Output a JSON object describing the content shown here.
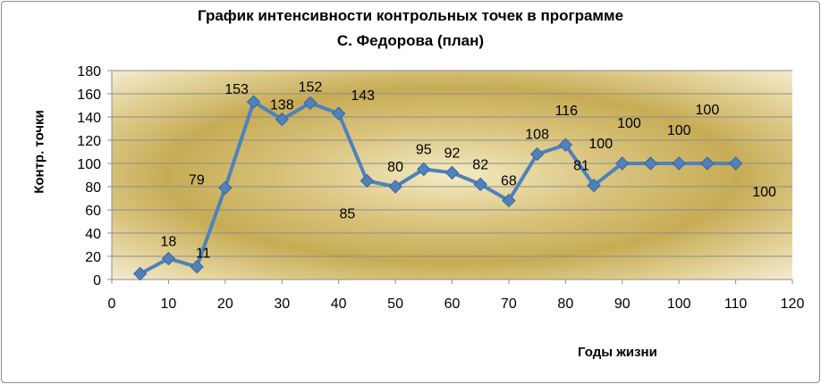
{
  "chart_data": {
    "type": "scatter",
    "title_line1": "График интенсивности контрольных точек   в программе",
    "title_line2": "С. Федорова (план)",
    "ylabel": "Контр. точки",
    "xlabel": "Годы жизни",
    "xlim": [
      0,
      120
    ],
    "ylim": [
      0,
      180
    ],
    "x_ticks": [
      0,
      10,
      20,
      30,
      40,
      50,
      60,
      70,
      80,
      90,
      100,
      110,
      120
    ],
    "y_ticks": [
      0,
      20,
      40,
      60,
      80,
      100,
      120,
      140,
      160,
      180
    ],
    "grid": "horizontal",
    "series": [
      {
        "color": "#4f81bd",
        "marker": "diamond",
        "x": [
          5,
          10,
          15,
          20,
          25,
          30,
          35,
          40,
          45,
          50,
          55,
          60,
          65,
          70,
          75,
          80,
          85,
          90,
          95,
          100,
          105,
          110
        ],
        "y": [
          5,
          18,
          11,
          79,
          153,
          138,
          152,
          143,
          85,
          80,
          95,
          92,
          82,
          68,
          108,
          116,
          81,
          100,
          100,
          100,
          100,
          100
        ]
      }
    ],
    "data_labels": [
      "",
      "18",
      "11",
      "79",
      "153",
      "138",
      "152",
      "143",
      "85",
      "80",
      "95",
      "92",
      "82",
      "68",
      "108",
      "116",
      "81",
      "100",
      "100",
      "100",
      "100",
      "100"
    ]
  }
}
